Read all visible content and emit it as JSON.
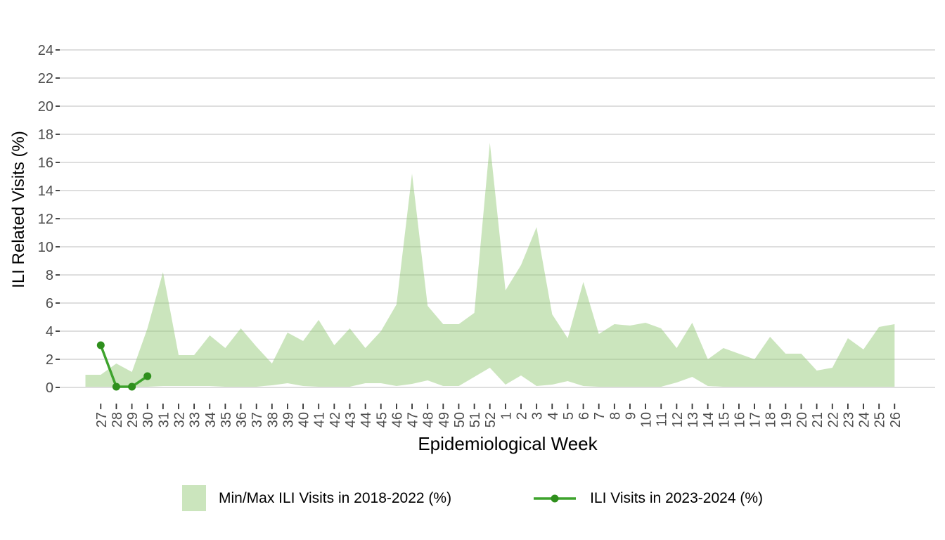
{
  "chart_data": {
    "type": "area",
    "title": "",
    "xlabel": "Epidemiological Week",
    "ylabel": "ILI Related Visits (%)",
    "ylim": [
      0,
      24
    ],
    "y_ticks": [
      0,
      2,
      4,
      6,
      8,
      10,
      12,
      14,
      16,
      18,
      20,
      22,
      24
    ],
    "grid": "horizontal-only",
    "legend_position": "bottom",
    "categories": [
      "27",
      "28",
      "29",
      "30",
      "31",
      "32",
      "33",
      "34",
      "35",
      "36",
      "37",
      "38",
      "39",
      "40",
      "41",
      "42",
      "43",
      "44",
      "45",
      "46",
      "47",
      "48",
      "49",
      "50",
      "51",
      "52",
      "1",
      "2",
      "3",
      "4",
      "5",
      "6",
      "7",
      "8",
      "9",
      "10",
      "11",
      "12",
      "13",
      "14",
      "15",
      "16",
      "17",
      "18",
      "19",
      "20",
      "21",
      "22",
      "23",
      "24",
      "25",
      "26"
    ],
    "series": [
      {
        "name": "Min/Max ILI Visits in 2018-2022 (%)",
        "type": "band",
        "color": "#97CB7B",
        "opacity": 0.5,
        "max": [
          0.9,
          1.7,
          1.1,
          4.2,
          8.2,
          2.3,
          2.3,
          3.7,
          2.8,
          4.2,
          2.9,
          1.7,
          3.9,
          3.3,
          4.8,
          3.0,
          4.2,
          2.8,
          4.0,
          5.9,
          15.2,
          5.8,
          4.5,
          4.5,
          5.3,
          17.4,
          6.9,
          8.7,
          11.4,
          5.2,
          3.5,
          7.5,
          3.8,
          4.5,
          4.4,
          4.6,
          4.2,
          2.8,
          4.6,
          2.0,
          2.8,
          2.4,
          2.0,
          3.6,
          2.4,
          2.4,
          1.2,
          1.4,
          3.5,
          2.7,
          4.3,
          4.5
        ],
        "min": [
          0.05,
          0.05,
          0.05,
          0.05,
          0.1,
          0.1,
          0.1,
          0.1,
          0.05,
          0.05,
          0.05,
          0.15,
          0.3,
          0.1,
          0.05,
          0.05,
          0.05,
          0.3,
          0.3,
          0.1,
          0.25,
          0.5,
          0.1,
          0.1,
          0.75,
          1.4,
          0.2,
          0.85,
          0.1,
          0.2,
          0.45,
          0.1,
          0.05,
          0.05,
          0.05,
          0.05,
          0.05,
          0.35,
          0.75,
          0.1,
          0.05,
          0.05,
          0.05,
          0.05,
          0.05,
          0.05,
          0.05,
          0.05,
          0.05,
          0.05,
          0.05,
          0.05
        ]
      },
      {
        "name": "ILI Visits in 2023-2024 (%)",
        "type": "line-with-markers",
        "color": "#3EA32D",
        "marker_color": "#2F8F1D",
        "weeks": [
          "27",
          "28",
          "29",
          "30"
        ],
        "values": [
          3.0,
          0.05,
          0.05,
          0.8
        ]
      }
    ],
    "colors": {
      "gridline": "#D9D9D9",
      "tick_mark": "#333333",
      "tick_label": "#4D4D4D",
      "axis_title": "#000000"
    }
  },
  "legend": {
    "band_label": "Min/Max ILI Visits in 2018-2022 (%)",
    "line_label": "ILI Visits in 2023-2024 (%)"
  }
}
